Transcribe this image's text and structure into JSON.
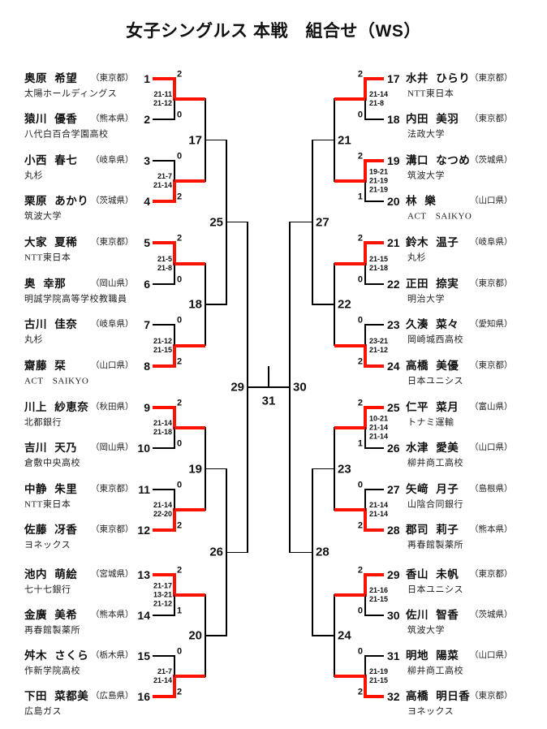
{
  "title": "女子シングルス 本戦　組合せ（WS）",
  "colors": {
    "winner_path": "#fb1200",
    "line": "#000000",
    "text": "#111111"
  },
  "entries": [
    {
      "no": "1",
      "name": "奥原 希望",
      "pref": "（東京都）",
      "club": "太陽ホールディングス",
      "score": "2",
      "winner": true
    },
    {
      "no": "2",
      "name": "猿川 優香",
      "pref": "（熊本県）",
      "club": "八代白百合学園高校",
      "score": "0",
      "winner": false
    },
    {
      "no": "3",
      "name": "小西 春七",
      "pref": "（岐阜県）",
      "club": "丸杉",
      "score": "0",
      "winner": false
    },
    {
      "no": "4",
      "name": "栗原 あかり",
      "pref": "（茨城県）",
      "club": "筑波大学",
      "score": "2",
      "winner": true
    },
    {
      "no": "5",
      "name": "大家 夏稀",
      "pref": "（東京都）",
      "club": "NTT東日本",
      "score": "2",
      "winner": true
    },
    {
      "no": "6",
      "name": "奥 幸那",
      "pref": "（岡山県）",
      "club": "明誠学院高等学校教職員",
      "score": "0",
      "winner": false
    },
    {
      "no": "7",
      "name": "古川 佳奈",
      "pref": "（岐阜県）",
      "club": "丸杉",
      "score": "0",
      "winner": false
    },
    {
      "no": "8",
      "name": "齋藤 栞",
      "pref": "（山口県）",
      "club": "ACT　SAIKYO",
      "score": "2",
      "winner": true
    },
    {
      "no": "9",
      "name": "川上 紗恵奈",
      "pref": "（秋田県）",
      "club": "北都銀行",
      "score": "2",
      "winner": true
    },
    {
      "no": "10",
      "name": "吉川 天乃",
      "pref": "（岡山県）",
      "club": "倉敷中央高校",
      "score": "0",
      "winner": false
    },
    {
      "no": "11",
      "name": "中静 朱里",
      "pref": "（東京都）",
      "club": "NTT東日本",
      "score": "0",
      "winner": false
    },
    {
      "no": "12",
      "name": "佐藤 冴香",
      "pref": "（東京都）",
      "club": "ヨネックス",
      "score": "2",
      "winner": true
    },
    {
      "no": "13",
      "name": "池内 萌絵",
      "pref": "（宮城県）",
      "club": "七十七銀行",
      "score": "2",
      "winner": true
    },
    {
      "no": "14",
      "name": "金廣 美希",
      "pref": "（熊本県）",
      "club": "再春館製薬所",
      "score": "1",
      "winner": false
    },
    {
      "no": "15",
      "name": "舛木 さくら",
      "pref": "（栃木県）",
      "club": "作新学院高校",
      "score": "0",
      "winner": false
    },
    {
      "no": "16",
      "name": "下田 菜都美",
      "pref": "（広島県）",
      "club": "広島ガス",
      "score": "2",
      "winner": true
    },
    {
      "no": "17",
      "name": "水井 ひらり",
      "pref": "（東京都）",
      "club": "NTT東日本",
      "score": "2",
      "winner": true
    },
    {
      "no": "18",
      "name": "内田 美羽",
      "pref": "（東京都）",
      "club": "法政大学",
      "score": "0",
      "winner": false
    },
    {
      "no": "19",
      "name": "溝口 なつめ",
      "pref": "（茨城県）",
      "club": "筑波大学",
      "score": "2",
      "winner": true
    },
    {
      "no": "20",
      "name": "林 樂",
      "pref": "（山口県）",
      "club": "ACT　SAIKYO",
      "score": "1",
      "winner": false
    },
    {
      "no": "21",
      "name": "鈴木 温子",
      "pref": "（岐阜県）",
      "club": "丸杉",
      "score": "2",
      "winner": true
    },
    {
      "no": "22",
      "name": "正田 捺実",
      "pref": "（東京都）",
      "club": "明治大学",
      "score": "0",
      "winner": false
    },
    {
      "no": "23",
      "name": "久湊 菜々",
      "pref": "（愛知県）",
      "club": "岡崎城西高校",
      "score": "0",
      "winner": false
    },
    {
      "no": "24",
      "name": "高橋 美優",
      "pref": "（東京都）",
      "club": "日本ユニシス",
      "score": "2",
      "winner": true
    },
    {
      "no": "25",
      "name": "仁平 菜月",
      "pref": "（富山県）",
      "club": "トナミ運輸",
      "score": "2",
      "winner": true
    },
    {
      "no": "26",
      "name": "水津 愛美",
      "pref": "（山口県）",
      "club": "柳井商工高校",
      "score": "1",
      "winner": false
    },
    {
      "no": "27",
      "name": "矢﨑 月子",
      "pref": "（島根県）",
      "club": "山陰合同銀行",
      "score": "0",
      "winner": false
    },
    {
      "no": "28",
      "name": "郡司 莉子",
      "pref": "（熊本県）",
      "club": "再春館製薬所",
      "score": "2",
      "winner": true
    },
    {
      "no": "29",
      "name": "香山 未帆",
      "pref": "（東京都）",
      "club": "日本ユニシス",
      "score": "2",
      "winner": true
    },
    {
      "no": "30",
      "name": "佐川 智香",
      "pref": "（茨城県）",
      "club": "筑波大学",
      "score": "0",
      "winner": false
    },
    {
      "no": "31",
      "name": "明地 陽菜",
      "pref": "（山口県）",
      "club": "柳井商工高校",
      "score": "0",
      "winner": false
    },
    {
      "no": "32",
      "name": "高橋 明日香",
      "pref": "（東京都）",
      "club": "ヨネックス",
      "score": "2",
      "winner": true
    }
  ],
  "first_round_sets": [
    [
      "21-11",
      "21-12"
    ],
    [
      "21-7",
      "21-14"
    ],
    [
      "21-5",
      "21-8"
    ],
    [
      "21-12",
      "21-15"
    ],
    [
      "21-14",
      "21-18"
    ],
    [
      "21-14",
      "22-20"
    ],
    [
      "21-17",
      "13-21",
      "21-12"
    ],
    [
      "21-7",
      "21-14"
    ],
    [
      "21-14",
      "21-8"
    ],
    [
      "19-21",
      "21-19",
      "21-19"
    ],
    [
      "21-15",
      "21-18"
    ],
    [
      "23-21",
      "21-12"
    ],
    [
      "10-21",
      "21-14",
      "21-14"
    ],
    [
      "21-14",
      "21-14"
    ],
    [
      "21-16",
      "21-15"
    ],
    [
      "21-19",
      "21-15"
    ]
  ],
  "round_labels": {
    "round2_left": [
      "17",
      "18",
      "19",
      "20"
    ],
    "round2_right": [
      "21",
      "22",
      "23",
      "24"
    ],
    "quarter_left": [
      "25",
      "26"
    ],
    "quarter_right": [
      "27",
      "28"
    ],
    "semifinal_left": "29",
    "semifinal_right": "30",
    "final": "31"
  }
}
